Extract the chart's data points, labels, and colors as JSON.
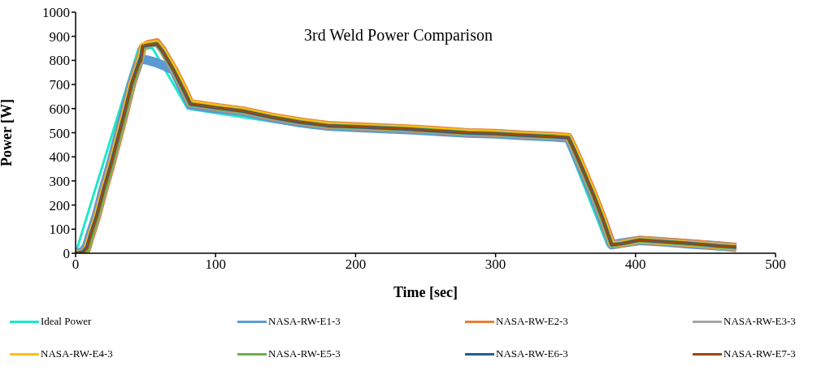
{
  "chart_data": {
    "type": "line",
    "title": "3rd Weld Power Comparison",
    "xlabel": "Time [sec]",
    "ylabel": "Power [W]",
    "xlim": [
      0,
      500
    ],
    "xticks": [
      0,
      100,
      200,
      300,
      400,
      500
    ],
    "ylim": [
      0,
      1000
    ],
    "yticks": [
      0,
      100,
      200,
      300,
      400,
      500,
      600,
      700,
      800,
      900,
      1000
    ],
    "grid": false,
    "legend": "bottom",
    "marker": "none",
    "line_style": "solid",
    "x": [
      0,
      5,
      8,
      10,
      15,
      20,
      25,
      30,
      35,
      40,
      45,
      47,
      48,
      52,
      58,
      62,
      70,
      77,
      82,
      100,
      120,
      140,
      160,
      180,
      200,
      220,
      240,
      260,
      280,
      300,
      320,
      340,
      352,
      356,
      362,
      370,
      376,
      383,
      390,
      403,
      420,
      440,
      460,
      472
    ],
    "series": [
      {
        "name": "Ideal Power",
        "color": "#1de9c8",
        "x": [
          0,
          45,
          55,
          80,
          170,
          350,
          380,
          400,
          470
        ],
        "values": [
          0,
          850,
          850,
          600,
          520,
          475,
          33,
          50,
          20
        ]
      },
      {
        "name": "NASA-RW-E1-3",
        "color": "#5b9bd5",
        "values": [
          0,
          5,
          30,
          70,
          160,
          270,
          370,
          480,
          590,
          705,
          790,
          810,
          805,
          800,
          790,
          780,
          760,
          675,
          615,
          600,
          588,
          562,
          542,
          528,
          522,
          517,
          512,
          505,
          498,
          495,
          488,
          483,
          478,
          425,
          345,
          235,
          145,
          35,
          42,
          53,
          47,
          38,
          30,
          24
        ]
      },
      {
        "name": "NASA-RW-E2-3",
        "color": "#ed7d31",
        "values": [
          0,
          0,
          15,
          55,
          145,
          255,
          355,
          465,
          575,
          695,
          790,
          830,
          855,
          868,
          875,
          845,
          765,
          685,
          622,
          607,
          592,
          567,
          547,
          532,
          527,
          522,
          517,
          510,
          502,
          499,
          492,
          487,
          482,
          435,
          355,
          245,
          155,
          38,
          40,
          56,
          49,
          41,
          31,
          26
        ]
      },
      {
        "name": "NASA-RW-E3-3",
        "color": "#a5a5a5",
        "values": [
          0,
          0,
          18,
          58,
          148,
          258,
          358,
          468,
          578,
          698,
          785,
          820,
          858,
          866,
          871,
          842,
          762,
          682,
          621,
          606,
          591,
          566,
          546,
          531,
          526,
          521,
          516,
          509,
          501,
          498,
          491,
          486,
          481,
          432,
          352,
          242,
          152,
          36,
          41,
          55,
          48,
          40,
          30,
          25
        ]
      },
      {
        "name": "NASA-RW-E4-3",
        "color": "#ffc000",
        "values": [
          0,
          0,
          22,
          62,
          152,
          262,
          362,
          472,
          582,
          702,
          782,
          825,
          862,
          867,
          873,
          843,
          768,
          688,
          625,
          608,
          593,
          568,
          548,
          533,
          527,
          522,
          518,
          511,
          503,
          499,
          492,
          487,
          483,
          438,
          358,
          248,
          158,
          37,
          40,
          54,
          47,
          39,
          29,
          24
        ]
      },
      {
        "name": "NASA-RW-E5-3",
        "color": "#70ad47",
        "values": [
          0,
          0,
          10,
          50,
          140,
          250,
          350,
          460,
          570,
          690,
          775,
          815,
          855,
          863,
          869,
          838,
          758,
          678,
          618,
          603,
          589,
          564,
          544,
          529,
          524,
          519,
          514,
          507,
          499,
          496,
          489,
          484,
          479,
          428,
          348,
          238,
          148,
          34,
          39,
          54,
          47,
          39,
          29,
          24
        ]
      },
      {
        "name": "NASA-RW-E6-3",
        "color": "#255e91",
        "values": [
          0,
          5,
          25,
          65,
          155,
          265,
          365,
          475,
          585,
          704,
          788,
          822,
          859,
          864,
          868,
          839,
          759,
          679,
          619,
          604,
          589,
          564,
          544,
          529,
          524,
          519,
          514,
          507,
          499,
          496,
          489,
          484,
          479,
          431,
          351,
          241,
          151,
          35,
          40,
          55,
          48,
          40,
          30,
          25
        ]
      },
      {
        "name": "NASA-RW-E7-3",
        "color": "#9e480e",
        "values": [
          0,
          0,
          20,
          60,
          150,
          260,
          360,
          470,
          580,
          700,
          780,
          800,
          860,
          865,
          870,
          840,
          760,
          680,
          620,
          605,
          590,
          565,
          545,
          530,
          525,
          520,
          515,
          508,
          500,
          497,
          490,
          485,
          480,
          430,
          350,
          240,
          150,
          35,
          40,
          55,
          48,
          40,
          30,
          25
        ]
      }
    ]
  }
}
